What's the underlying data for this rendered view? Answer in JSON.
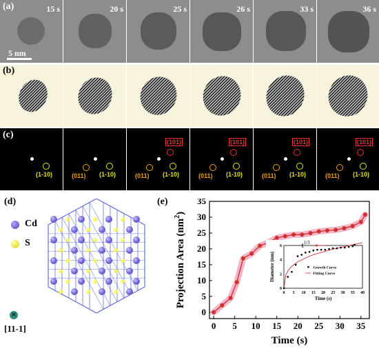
{
  "panels": {
    "a": "(a)",
    "b": "(b)",
    "c": "(c)",
    "d": "(d)",
    "e": "(e)"
  },
  "tem_times": [
    "15 s",
    "20 s",
    "25 s",
    "26 s",
    "33 s",
    "36 s"
  ],
  "scale_bar": "5 nm",
  "fft_labels": {
    "yellow": "(1-10)",
    "red": "(101)",
    "orange": "(011)"
  },
  "crystal": {
    "legend_cd": "Cd",
    "legend_s": "S",
    "zone_axis": "[11-1]",
    "colors": {
      "cd": "#6a5fd0",
      "s": "#f2f23a",
      "lattice": "#4a5ae0"
    }
  },
  "chart_data": [
    {
      "type": "line",
      "ylabel": "Projection Area (nm²)",
      "ylabel_main": "Projection Area (nm",
      "ylabel_sup": "2",
      "ylabel_tail": ")",
      "xlabel": "Time (s)",
      "xlim": [
        -1,
        37
      ],
      "ylim": [
        -2,
        35
      ],
      "xticks": [
        0,
        5,
        10,
        15,
        20,
        25,
        30,
        35
      ],
      "yticks": [
        0,
        5,
        10,
        15,
        20,
        25,
        30,
        35
      ],
      "series": [
        {
          "x": [
            0,
            2,
            4,
            5.5,
            7,
            9,
            11,
            13,
            15,
            17,
            19,
            21,
            23,
            25,
            27,
            29,
            31,
            33,
            35,
            36
          ],
          "values": [
            0,
            2.2,
            4.5,
            9.5,
            17,
            18.5,
            21,
            22,
            23.5,
            24,
            24.5,
            24.5,
            25,
            25.5,
            25.8,
            26,
            26.5,
            27.2,
            28.5,
            30.8
          ],
          "color": "#d03030"
        }
      ],
      "inset": {
        "type": "line",
        "ylabel": "Diameter (nm)",
        "xlabel": "Time (s)",
        "xlim": [
          0,
          40
        ],
        "ylim": [
          0,
          6
        ],
        "xticks": [
          0,
          5,
          10,
          15,
          20,
          25,
          30,
          35,
          40
        ],
        "yticks": [
          0,
          2,
          4,
          6
        ],
        "annotation": "t",
        "annotation_sup": "1/3",
        "legend": [
          "Growth Curve",
          "Fitting Curve"
        ],
        "series": [
          {
            "name": "Growth Curve",
            "x": [
              0,
              2,
              4,
              6,
              7,
              9,
              11,
              13,
              15,
              17,
              19,
              21,
              23,
              25,
              27,
              29,
              31,
              33,
              35,
              36
            ],
            "values": [
              0,
              1.6,
              2.3,
              3.3,
              4.5,
              4.7,
              5.0,
              5.1,
              5.3,
              5.4,
              5.4,
              5.4,
              5.5,
              5.6,
              5.6,
              5.7,
              5.7,
              5.8,
              5.9,
              6.1
            ]
          },
          {
            "name": "Fitting Curve",
            "x": [
              0,
              1,
              2,
              3,
              5,
              7,
              10,
              13,
              16,
              20,
              25,
              30,
              35,
              40
            ],
            "values": [
              0,
              1.9,
              2.4,
              2.8,
              3.3,
              3.7,
              4.1,
              4.5,
              4.8,
              5.1,
              5.5,
              5.8,
              6.1,
              6.4
            ]
          }
        ]
      }
    }
  ]
}
